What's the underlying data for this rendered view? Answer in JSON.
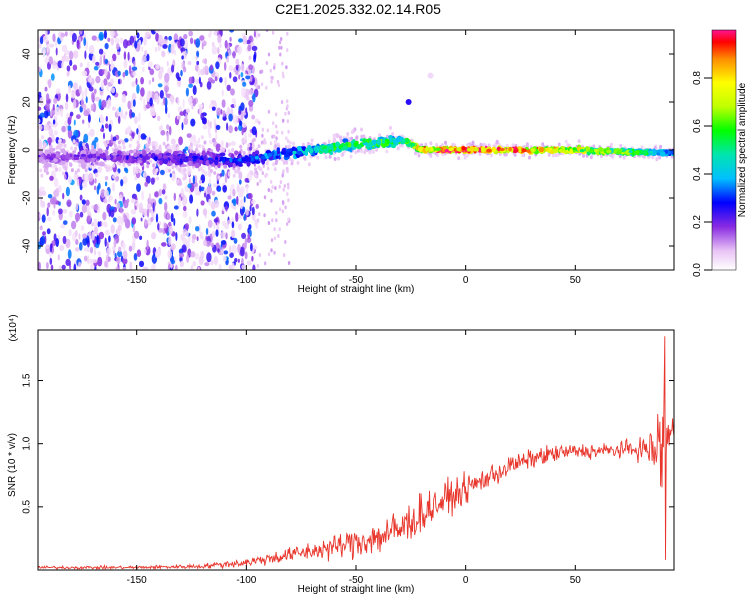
{
  "title": "C2E1.2025.332.02.14.R05",
  "chart_data": [
    {
      "type": "heatmap",
      "name": "spectrogram",
      "xlabel": "Height of straight line (km)",
      "ylabel": "Frequency (Hz)",
      "xlim": [
        -195,
        95
      ],
      "ylim": [
        -50,
        50
      ],
      "xticks": [
        -150,
        -100,
        -50,
        0,
        50
      ],
      "yticks": [
        -40,
        -20,
        0,
        20,
        40
      ],
      "colorbar": {
        "label": "Normalized spectral amplitude",
        "range": [
          0,
          1
        ],
        "ticks": [
          0.0,
          0.2,
          0.4,
          0.6,
          0.8
        ],
        "tick_labels": [
          "0.0",
          "0.2",
          "0.4",
          "0.6",
          "0.8"
        ]
      },
      "ridge": [
        {
          "x": -190,
          "y": -3,
          "amp": 0.2
        },
        {
          "x": -160,
          "y": -3,
          "amp": 0.22
        },
        {
          "x": -120,
          "y": -4,
          "amp": 0.28
        },
        {
          "x": -100,
          "y": -4,
          "amp": 0.32
        },
        {
          "x": -80,
          "y": -1,
          "amp": 0.4
        },
        {
          "x": -60,
          "y": 1,
          "amp": 0.55
        },
        {
          "x": -40,
          "y": 3,
          "amp": 0.6
        },
        {
          "x": -28,
          "y": 4,
          "amp": 0.55
        },
        {
          "x": -20,
          "y": 0,
          "amp": 0.85
        },
        {
          "x": 0,
          "y": 0,
          "amp": 0.95
        },
        {
          "x": 20,
          "y": 0,
          "amp": 0.9
        },
        {
          "x": 50,
          "y": 0,
          "amp": 0.75
        },
        {
          "x": 80,
          "y": -1,
          "amp": 0.55
        },
        {
          "x": 92,
          "y": -1,
          "amp": 0.4
        }
      ],
      "outliers": [
        {
          "x": -26,
          "y": 20,
          "amp": 0.25
        },
        {
          "x": -16,
          "y": 31,
          "amp": 0.05
        }
      ]
    },
    {
      "type": "line",
      "name": "snr",
      "xlabel": "Height of straight line (km)",
      "ylabel": "SNR (10 * v/v)",
      "multiplier": "(x10⁴)",
      "color": "#e8362c",
      "xlim": [
        -195,
        95
      ],
      "ylim": [
        0,
        1.9
      ],
      "xticks": [
        -150,
        -100,
        -50,
        0,
        50
      ],
      "yticks": [
        0.5,
        1.0,
        1.5
      ],
      "ytick_labels": [
        "0.5",
        "1.0",
        "1.5"
      ],
      "x": [
        -195,
        -150,
        -120,
        -100,
        -90,
        -80,
        -70,
        -60,
        -50,
        -40,
        -30,
        -20,
        -10,
        0,
        10,
        20,
        30,
        40,
        50,
        60,
        70,
        80,
        85,
        88,
        90,
        92,
        95
      ],
      "y": [
        0.02,
        0.02,
        0.03,
        0.06,
        0.09,
        0.12,
        0.15,
        0.18,
        0.22,
        0.26,
        0.32,
        0.45,
        0.55,
        0.64,
        0.73,
        0.82,
        0.88,
        0.92,
        0.94,
        0.94,
        0.95,
        0.96,
        0.95,
        0.95,
        1.0,
        1.05,
        1.1
      ],
      "noise": [
        0.01,
        0.01,
        0.015,
        0.03,
        0.04,
        0.05,
        0.06,
        0.08,
        0.1,
        0.12,
        0.14,
        0.13,
        0.11,
        0.09,
        0.08,
        0.07,
        0.06,
        0.06,
        0.05,
        0.05,
        0.05,
        0.07,
        0.15,
        0.3,
        0.45,
        0.25,
        0.15
      ]
    }
  ]
}
